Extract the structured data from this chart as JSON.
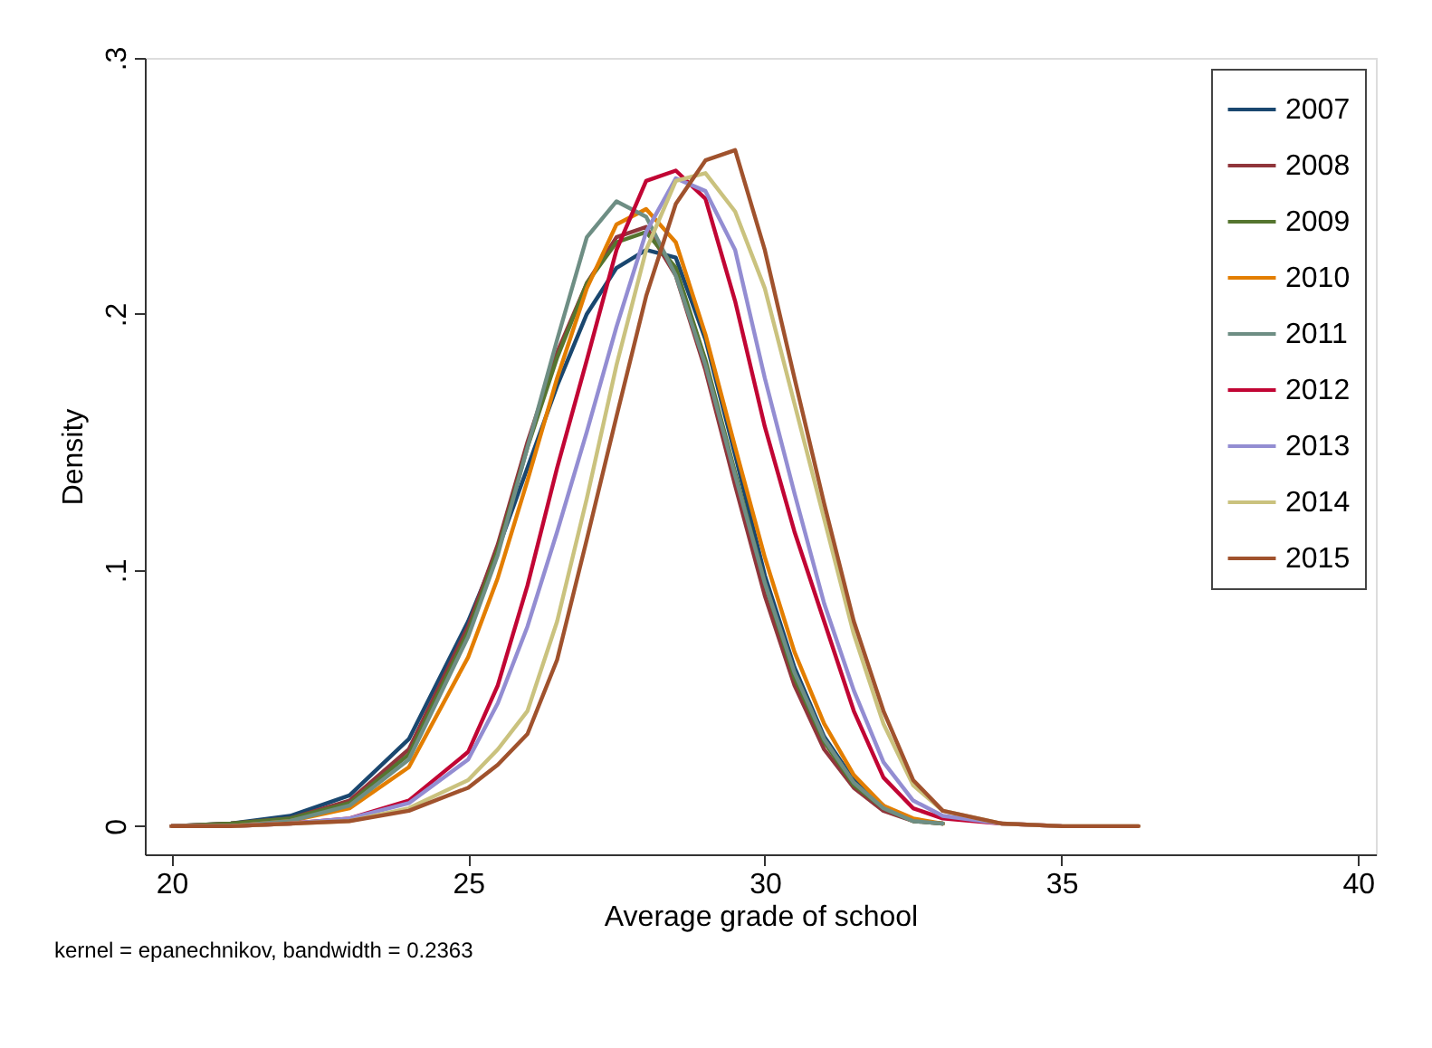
{
  "chart_data": {
    "type": "line",
    "xlabel": "Average grade of school",
    "ylabel": "Density",
    "annotations": [
      "kernel = epanechnikov, bandwidth = 0.2363"
    ],
    "x": [
      20,
      21,
      22,
      23,
      24,
      25,
      25.5,
      26,
      26.5,
      27,
      27.5,
      28,
      28.5,
      29,
      29.5,
      30,
      30.5,
      31,
      31.5,
      32,
      32.5,
      33,
      34,
      35,
      36.3
    ],
    "series": [
      {
        "name": "2007",
        "color": "#1a476f",
        "values": [
          0,
          0.001,
          0.004,
          0.012,
          0.034,
          0.08,
          0.108,
          0.14,
          0.172,
          0.2,
          0.218,
          0.225,
          0.222,
          0.19,
          0.145,
          0.098,
          0.062,
          0.035,
          0.018,
          0.008,
          null,
          null,
          null,
          null,
          null
        ]
      },
      {
        "name": "2008",
        "color": "#90353b",
        "values": [
          0,
          0.001,
          0.003,
          0.01,
          0.03,
          0.078,
          0.11,
          0.15,
          0.185,
          0.212,
          0.23,
          0.234,
          0.215,
          0.178,
          0.133,
          0.09,
          0.055,
          0.03,
          0.015,
          0.006,
          0.002,
          0.001,
          null,
          null,
          null
        ]
      },
      {
        "name": "2009",
        "color": "#55752f",
        "values": [
          0,
          0.001,
          0.003,
          0.009,
          0.028,
          0.076,
          0.108,
          0.148,
          0.183,
          0.212,
          0.228,
          0.232,
          0.218,
          0.182,
          0.138,
          0.095,
          0.058,
          0.033,
          0.016,
          0.007,
          0.002,
          0.001,
          null,
          null,
          null
        ]
      },
      {
        "name": "2010",
        "color": "#e37e00",
        "values": [
          0,
          0,
          0.002,
          0.007,
          0.023,
          0.066,
          0.097,
          0.135,
          0.175,
          0.21,
          0.235,
          0.241,
          0.228,
          0.192,
          0.148,
          0.105,
          0.068,
          0.04,
          0.02,
          0.008,
          0.003,
          0.001,
          null,
          null,
          null
        ]
      },
      {
        "name": "2011",
        "color": "#6e8e84",
        "values": [
          0,
          0,
          0.002,
          0.008,
          0.026,
          0.074,
          0.106,
          0.148,
          0.19,
          0.23,
          0.244,
          0.238,
          0.215,
          0.18,
          0.137,
          0.095,
          0.06,
          0.034,
          0.017,
          0.007,
          0.002,
          0.001,
          null,
          null,
          null
        ]
      },
      {
        "name": "2012",
        "color": "#c10534",
        "values": [
          0,
          0,
          0.001,
          0.003,
          0.01,
          0.029,
          0.055,
          0.094,
          0.14,
          0.182,
          0.225,
          0.252,
          0.256,
          0.245,
          0.205,
          0.156,
          0.115,
          0.08,
          0.045,
          0.019,
          0.007,
          0.003,
          0.001,
          0,
          null
        ]
      },
      {
        "name": "2013",
        "color": "#938dd2",
        "values": [
          0,
          0,
          0.001,
          0.003,
          0.009,
          0.026,
          0.048,
          0.078,
          0.115,
          0.154,
          0.195,
          0.232,
          0.253,
          0.248,
          0.225,
          0.175,
          0.13,
          0.087,
          0.053,
          0.025,
          0.01,
          0.004,
          0.001,
          0,
          null
        ]
      },
      {
        "name": "2014",
        "color": "#cac27e",
        "values": [
          0,
          0,
          0.001,
          0.002,
          0.007,
          0.018,
          0.03,
          0.045,
          0.08,
          0.128,
          0.18,
          0.225,
          0.252,
          0.255,
          0.24,
          0.21,
          0.165,
          0.12,
          0.075,
          0.04,
          0.016,
          0.006,
          0.001,
          0,
          0
        ]
      },
      {
        "name": "2015",
        "color": "#a0522d",
        "values": [
          0,
          0,
          0.001,
          0.002,
          0.006,
          0.015,
          0.024,
          0.036,
          0.065,
          0.112,
          0.16,
          0.207,
          0.243,
          0.26,
          0.264,
          0.225,
          0.175,
          0.126,
          0.08,
          0.045,
          0.018,
          0.006,
          0.001,
          0,
          0
        ]
      }
    ],
    "xlim": [
      19.55,
      40.3
    ],
    "xticks": [
      20,
      25,
      30,
      35,
      40
    ],
    "ylim": [
      -0.011,
      0.3
    ],
    "yticks": [
      {
        "value": 0,
        "label": "0"
      },
      {
        "value": 0.1,
        "label": ".1"
      },
      {
        "value": 0.2,
        "label": ".2"
      },
      {
        "value": 0.3,
        "label": ".3"
      }
    ],
    "grid": false,
    "legend": "top right",
    "marker": "none",
    "line_style": "solid"
  }
}
